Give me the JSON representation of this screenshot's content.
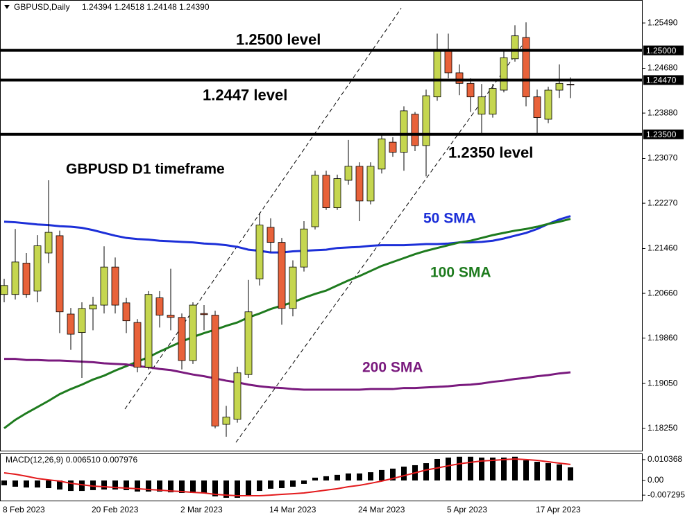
{
  "chart_data": [
    {
      "type": "candlestick",
      "title": "GBPUSD,Daily",
      "ohlc_text": "1.24394 1.24518 1.24148 1.24390",
      "annotations": [
        "GBPUSD D1 timeframe"
      ],
      "categories": [
        "8 Feb 2023",
        null,
        null,
        null,
        null,
        null,
        null,
        null,
        "20 Feb 2023",
        null,
        null,
        null,
        null,
        null,
        null,
        null,
        "2 Mar 2023",
        null,
        null,
        null,
        null,
        null,
        null,
        null,
        "14 Mar 2023",
        null,
        null,
        null,
        null,
        null,
        null,
        null,
        "24 Mar 2023",
        null,
        null,
        null,
        null,
        null,
        null,
        null,
        "5 Apr 2023",
        null,
        null,
        null,
        null,
        null,
        null,
        null,
        "17 Apr 2023",
        null,
        null,
        null
      ],
      "open": [
        1.2064,
        1.2064,
        1.212,
        1.207,
        1.2138,
        1.2169,
        1.2029,
        1.1996,
        1.2038,
        1.2045,
        1.2113,
        1.2049,
        1.2014,
        1.1934,
        1.2058,
        1.2027,
        1.2023,
        1.1946,
        1.203,
        1.2027,
        1.1832,
        1.1841,
        1.1921,
        1.2092,
        1.2184,
        1.2157,
        1.2039,
        1.2113,
        1.2185,
        1.2277,
        1.2219,
        1.2268,
        1.2293,
        1.2231,
        1.2288,
        1.2336,
        1.2318,
        1.2386,
        1.233,
        1.2417,
        1.2501,
        1.246,
        1.2441,
        1.2386,
        1.2386,
        1.2429,
        1.2485,
        1.2523,
        1.2417,
        1.2377,
        1.2429,
        1.24394
      ],
      "high": [
        1.2092,
        1.2181,
        1.2138,
        1.217,
        1.2268,
        1.2178,
        1.204,
        1.205,
        1.206,
        1.215,
        1.213,
        1.2058,
        1.202,
        1.207,
        1.207,
        1.211,
        1.203,
        1.205,
        1.2045,
        1.2035,
        1.1865,
        1.1935,
        1.209,
        1.221,
        1.22,
        1.2165,
        1.2125,
        1.2195,
        1.2285,
        1.2285,
        1.2278,
        1.234,
        1.23,
        1.23,
        1.235,
        1.2345,
        1.24,
        1.239,
        1.243,
        1.253,
        1.253,
        1.2475,
        1.245,
        1.244,
        1.244,
        1.25,
        1.2545,
        1.255,
        1.243,
        1.2435,
        1.2475,
        1.24518
      ],
      "low": [
        1.205,
        1.2055,
        1.2058,
        1.205,
        1.212,
        1.1995,
        1.1965,
        1.1915,
        1.2,
        1.203,
        1.203,
        1.1995,
        1.1925,
        1.193,
        1.2005,
        1.2,
        1.193,
        1.194,
        1.2,
        1.1825,
        1.181,
        1.1835,
        1.1915,
        1.208,
        1.214,
        1.201,
        1.2025,
        1.2105,
        1.218,
        1.2215,
        1.2215,
        1.226,
        1.2195,
        1.2225,
        1.228,
        1.231,
        1.2285,
        1.232,
        1.2275,
        1.241,
        1.245,
        1.242,
        1.239,
        1.235,
        1.238,
        1.2425,
        1.248,
        1.24,
        1.235,
        1.237,
        1.2415,
        1.24148
      ],
      "close": [
        1.208,
        1.2122,
        1.2064,
        1.2151,
        1.2175,
        1.2033,
        1.1993,
        1.2039,
        1.2045,
        1.2113,
        1.2045,
        1.2017,
        1.1934,
        1.2064,
        1.2027,
        1.2023,
        1.1946,
        1.2045,
        1.2028,
        1.1829,
        1.1845,
        1.1924,
        1.2033,
        1.2188,
        1.2157,
        1.2039,
        1.2113,
        1.2181,
        1.2277,
        1.2219,
        1.2271,
        1.2293,
        1.2231,
        1.2293,
        1.2342,
        1.2318,
        1.2392,
        1.233,
        1.2419,
        1.2501,
        1.246,
        1.2441,
        1.2417,
        1.2417,
        1.2432,
        1.2487,
        1.2526,
        1.2417,
        1.238,
        1.2429,
        1.2441,
        1.2439
      ],
      "up_color": "#c5d64f",
      "down_color": "#e8623a",
      "series": [
        {
          "name": "50 SMA",
          "color": "#1c2fd8",
          "values": [
            1.2194,
            1.2193,
            1.2191,
            1.2189,
            1.2188,
            1.2186,
            1.2185,
            1.2183,
            1.2179,
            1.2174,
            1.2169,
            1.2165,
            1.2163,
            1.2162,
            1.216,
            1.2159,
            1.2158,
            1.2157,
            1.2155,
            1.2154,
            1.2152,
            1.2149,
            1.2144,
            1.2142,
            1.2139,
            1.2139,
            1.2141,
            1.2142,
            1.2143,
            1.2144,
            1.2147,
            1.2148,
            1.2149,
            1.2151,
            1.2152,
            1.2152,
            1.2152,
            1.2153,
            1.2154,
            1.2154,
            1.2155,
            1.2157,
            1.2157,
            1.2158,
            1.216,
            1.2164,
            1.2169,
            1.2174,
            1.2181,
            1.219,
            1.2198,
            1.2204
          ]
        },
        {
          "name": "100 SMA",
          "color": "#1e7b1e",
          "values": [
            1.1825,
            1.184,
            1.1852,
            1.1863,
            1.1874,
            1.1886,
            1.1895,
            1.1903,
            1.1912,
            1.1919,
            1.1928,
            1.1936,
            1.1944,
            1.1952,
            1.1962,
            1.1971,
            1.198,
            1.1988,
            1.1995,
            1.2001,
            1.2008,
            1.2014,
            1.2023,
            1.203,
            1.2038,
            1.2044,
            1.205,
            1.2058,
            1.2065,
            1.2071,
            1.208,
            1.2089,
            1.2097,
            1.2106,
            1.2115,
            1.2122,
            1.2129,
            1.2136,
            1.2142,
            1.2147,
            1.2152,
            1.2157,
            1.216,
            1.2165,
            1.217,
            1.2174,
            1.2178,
            1.2181,
            1.2185,
            1.219,
            1.2194,
            1.2199
          ]
        },
        {
          "name": "200 SMA",
          "color": "#7a1a7e",
          "values": [
            1.1949,
            1.1949,
            1.1947,
            1.1947,
            1.1946,
            1.1946,
            1.1945,
            1.1944,
            1.1943,
            1.1941,
            1.194,
            1.1939,
            1.1936,
            1.1934,
            1.1931,
            1.1929,
            1.1925,
            1.1921,
            1.1918,
            1.1914,
            1.191,
            1.1907,
            1.1903,
            1.19,
            1.1898,
            1.1897,
            1.1895,
            1.1894,
            1.1894,
            1.1894,
            1.1894,
            1.1894,
            1.1894,
            1.1895,
            1.1895,
            1.1895,
            1.1897,
            1.1897,
            1.1898,
            1.1899,
            1.19,
            1.1902,
            1.1903,
            1.1905,
            1.1908,
            1.191,
            1.1913,
            1.1915,
            1.1918,
            1.192,
            1.1923,
            1.1925
          ]
        }
      ],
      "levels": [
        {
          "value": 1.25,
          "label": "1.2500 level",
          "axis_label": "1.25000"
        },
        {
          "value": 1.2447,
          "label": "1.2447 level",
          "axis_label": "1.24470"
        },
        {
          "value": 1.235,
          "label": "1.2350 level",
          "axis_label": "1.23500"
        }
      ],
      "ylim": [
        1.1785,
        1.259
      ],
      "yticks": [
        {
          "value": 1.2549,
          "label": "1.25490"
        },
        {
          "value": 1.2468,
          "label": "1.24680"
        },
        {
          "value": 1.2388,
          "label": "1.23880"
        },
        {
          "value": 1.2307,
          "label": "1.23070"
        },
        {
          "value": 1.2227,
          "label": "1.22270"
        },
        {
          "value": 1.2146,
          "label": "1.21460"
        },
        {
          "value": 1.2066,
          "label": "1.20660"
        },
        {
          "value": 1.1986,
          "label": "1.19860"
        },
        {
          "value": 1.1905,
          "label": "1.19050"
        },
        {
          "value": 1.1825,
          "label": "1.18250"
        }
      ]
    },
    {
      "type": "macd",
      "title": "MACD(12,26,9) 0.006510 0.007976",
      "histogram": {
        "color": "#000000",
        "values": [
          -0.0024,
          -0.0031,
          -0.0035,
          -0.0035,
          -0.0038,
          -0.0045,
          -0.0052,
          -0.0052,
          -0.0048,
          -0.0045,
          -0.0045,
          -0.0048,
          -0.0055,
          -0.0055,
          -0.0055,
          -0.0059,
          -0.0062,
          -0.0062,
          -0.0062,
          -0.0079,
          -0.0086,
          -0.0086,
          -0.0073,
          -0.0052,
          -0.0041,
          -0.0038,
          -0.0031,
          -0.0017,
          0.0014,
          0.0021,
          0.0028,
          0.0035,
          0.0035,
          0.0041,
          0.0052,
          0.0059,
          0.0069,
          0.0076,
          0.0086,
          0.0107,
          0.0114,
          0.0118,
          0.0118,
          0.0114,
          0.0114,
          0.0114,
          0.0118,
          0.01,
          0.0093,
          0.0086,
          0.008,
          0.00651
        ]
      },
      "signal": {
        "color": "#e31a1c",
        "values": [
          0.0038,
          0.0031,
          0.0021,
          0.001,
          0.0003,
          -0.0003,
          -0.0014,
          -0.0021,
          -0.0028,
          -0.0031,
          -0.0035,
          -0.0038,
          -0.0041,
          -0.0045,
          -0.0048,
          -0.0052,
          -0.0055,
          -0.0059,
          -0.0062,
          -0.0069,
          -0.0073,
          -0.0076,
          -0.0076,
          -0.0076,
          -0.0073,
          -0.0069,
          -0.0066,
          -0.0062,
          -0.0055,
          -0.0048,
          -0.0041,
          -0.0031,
          -0.0024,
          -0.0014,
          -0.0003,
          0.001,
          0.0024,
          0.0038,
          0.0052,
          0.0062,
          0.0073,
          0.0083,
          0.009,
          0.0097,
          0.01,
          0.0104,
          0.0107,
          0.0104,
          0.01,
          0.0093,
          0.0086,
          0.007976
        ]
      },
      "ylim": [
        -0.01,
        0.0131
      ],
      "yticks": [
        0.010368,
        {
          "value": 0,
          "label": "0.00"
        },
        -0.007295
      ]
    }
  ]
}
